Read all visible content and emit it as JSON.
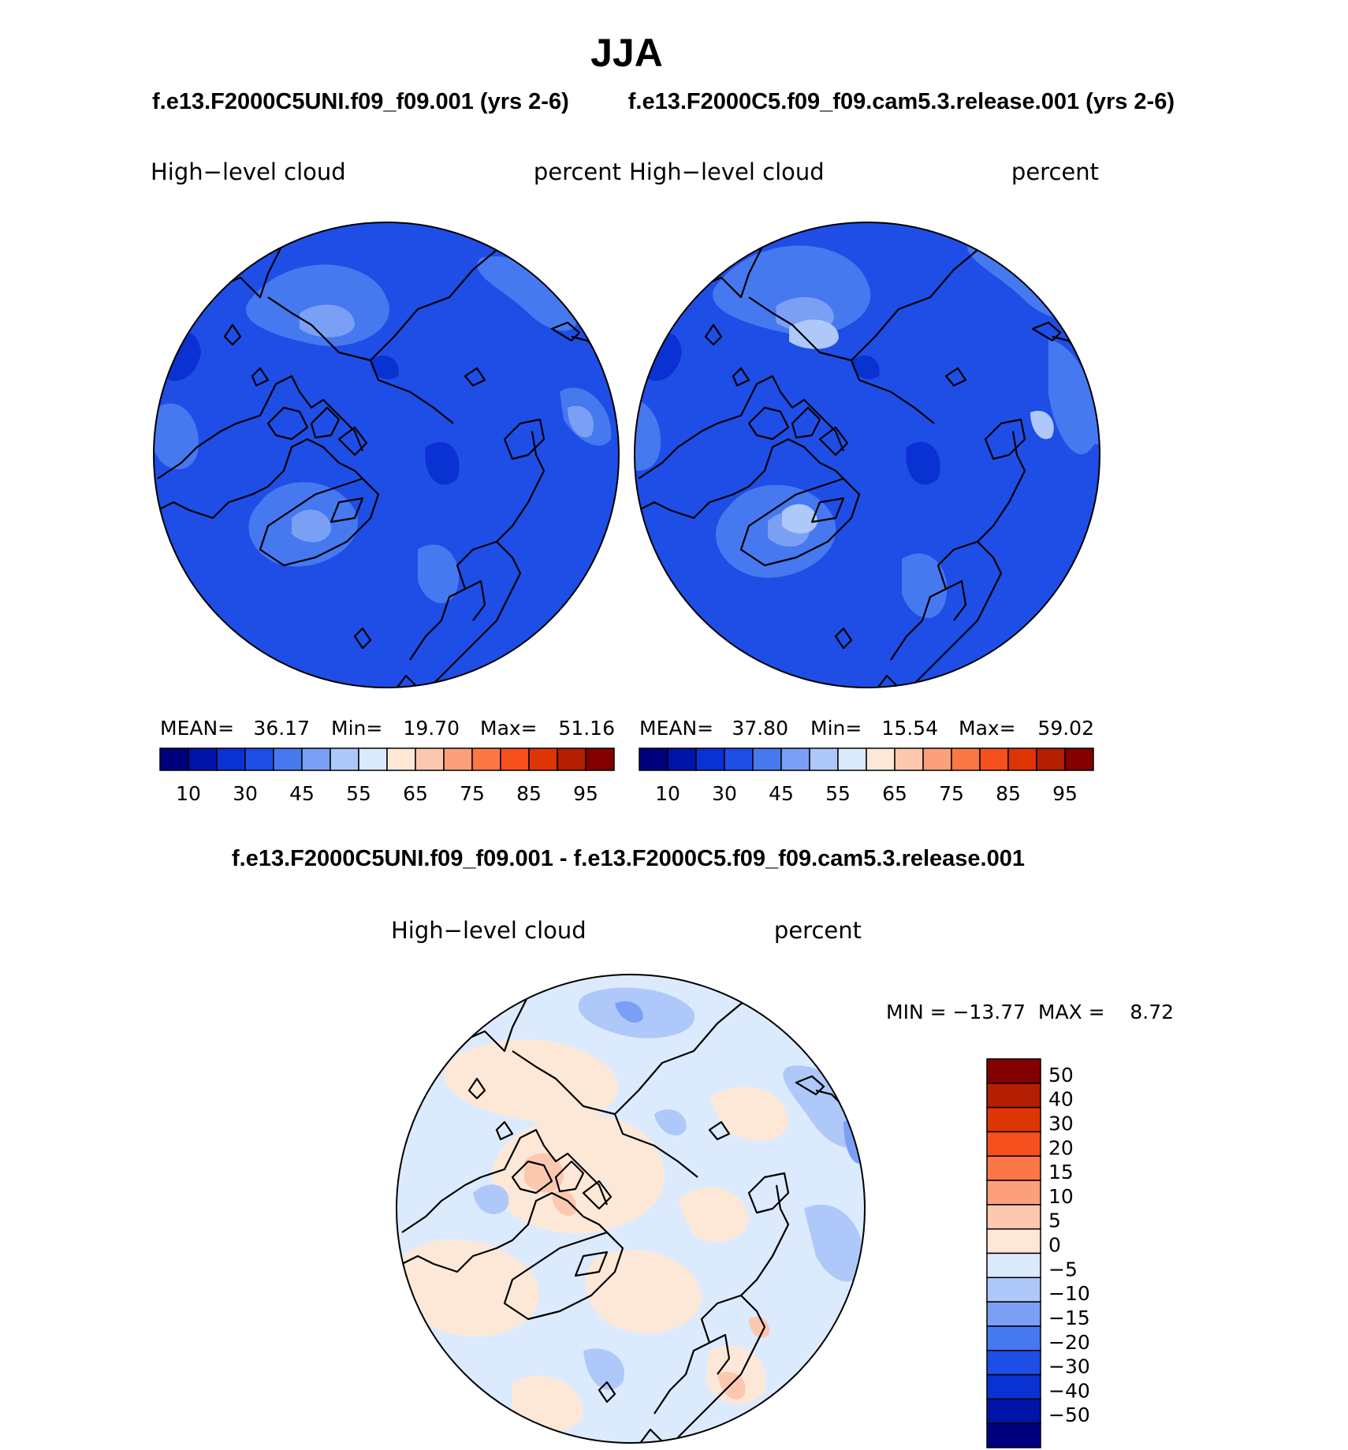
{
  "title": "JJA",
  "panels": [
    {
      "case": "f.e13.F2000C5UNI.f09_f09.001 (yrs 2-6)",
      "variable": "High−level cloud",
      "units": "percent",
      "stats": {
        "mean_label": "MEAN=",
        "mean": "36.17",
        "min_label": "Min=",
        "min": "19.70",
        "max_label": "Max=",
        "max": "51.16"
      }
    },
    {
      "case": "f.e13.F2000C5.f09_f09.cam5.3.release.001 (yrs 2-6)",
      "variable": "High−level cloud",
      "units": "percent",
      "stats": {
        "mean_label": "MEAN=",
        "mean": "37.80",
        "min_label": "Min=",
        "min": "15.54",
        "max_label": "Max=",
        "max": "59.02"
      }
    }
  ],
  "abs_colorbar": {
    "labels": [
      "10",
      "30",
      "45",
      "55",
      "65",
      "75",
      "85",
      "95"
    ],
    "colors": [
      "#00007f",
      "#0014a8",
      "#0a32d2",
      "#1e4ee6",
      "#4678f0",
      "#7aa0f5",
      "#afc8fa",
      "#dceafd",
      "#fde8d8",
      "#fcc8b0",
      "#fba07a",
      "#fa7846",
      "#f5501e",
      "#de3505",
      "#b41e02",
      "#820000"
    ]
  },
  "diff_panel": {
    "title": "f.e13.F2000C5UNI.f09_f09.001 - f.e13.F2000C5.f09_f09.cam5.3.release.001",
    "variable": "High−level cloud",
    "units": "percent",
    "minmax": "MIN = −13.77  MAX =    8.72",
    "colorbar_labels": [
      "50",
      "40",
      "30",
      "20",
      "15",
      "10",
      "5",
      "0",
      "−5",
      "−10",
      "−15",
      "−20",
      "−30",
      "−40",
      "−50"
    ],
    "colorbar_colors": [
      "#820000",
      "#b41e02",
      "#de3505",
      "#f5501e",
      "#fa7846",
      "#fba07a",
      "#fcc8b0",
      "#fde8d8",
      "#dceafd",
      "#afc8fa",
      "#7aa0f5",
      "#4678f0",
      "#1e4ee6",
      "#0a32d2",
      "#0014a8",
      "#00007f"
    ]
  }
}
